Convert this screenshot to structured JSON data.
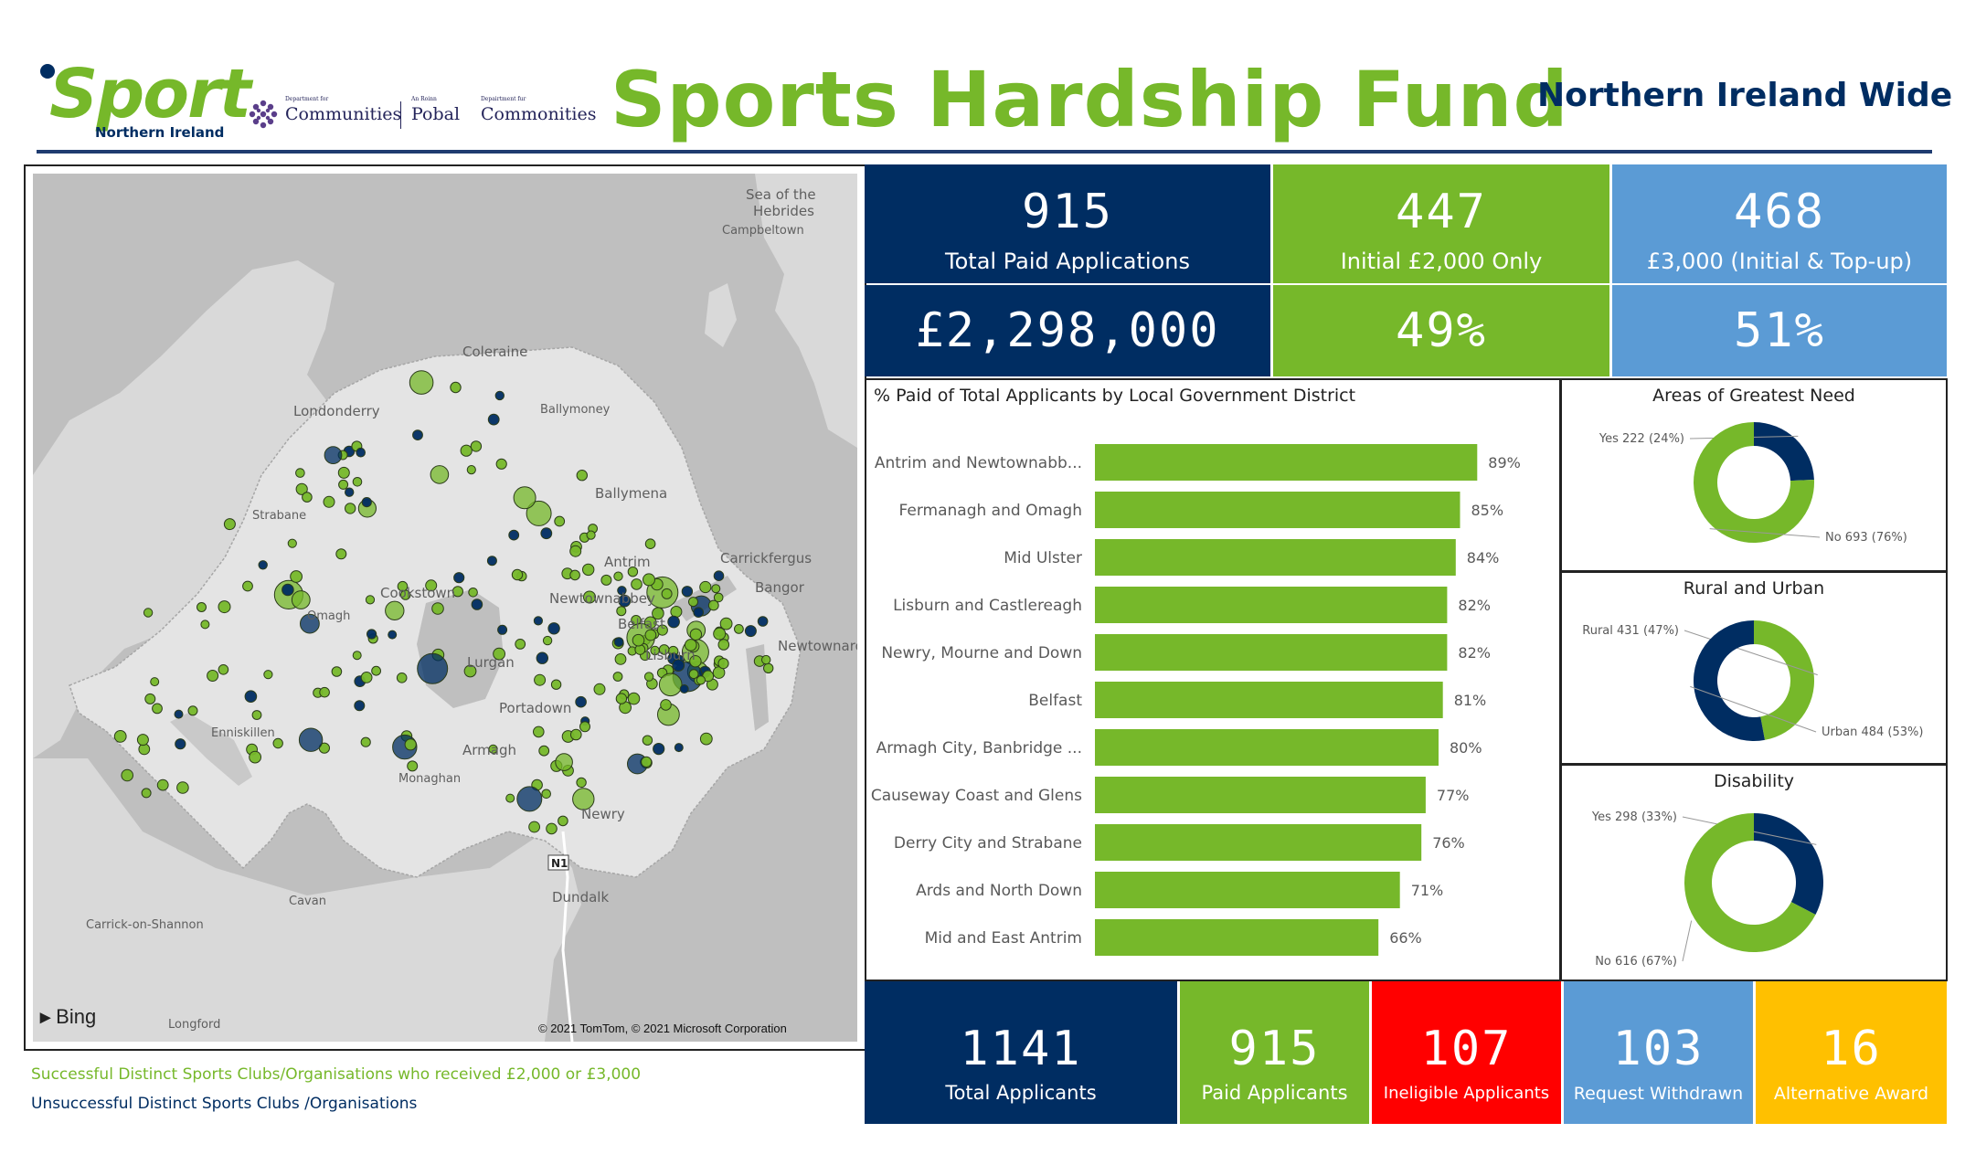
{
  "header": {
    "brand_word": "Sport",
    "brand_sub": "Northern Ireland",
    "dept_tiny_1": "Department for",
    "dept_big_1": "Communities",
    "dept_tiny_2": "An Roinn",
    "dept_big_2": "Pobal",
    "dept_tiny_3": "Depairtment fur",
    "dept_big_3": "Commonities",
    "title": "Sports Hardship Fund",
    "region": "Northern Ireland Wide"
  },
  "colors": {
    "navy": "#002d62",
    "green": "#76b82a",
    "light_blue": "#5b9bd5",
    "red": "#ff0000",
    "amber": "#ffc000"
  },
  "map": {
    "labels": {
      "sea": "Sea of the",
      "sea2": "Hebrides",
      "campbeltown": "Campbeltown",
      "coleraine": "Coleraine",
      "londonderry": "Londonderry",
      "ballymoney": "Ballymoney",
      "ballymena": "Ballymena",
      "strabane": "Strabane",
      "antrim": "Antrim",
      "carrickfergus": "Carrickfergus",
      "bangor": "Bangor",
      "cookstown": "Cookstown",
      "newtownabbey": "Newtownabbey",
      "omagh": "Omagh",
      "belfast": "Belfast",
      "newtownards": "Newtownards",
      "lisburn": "Lisburn",
      "lurgan": "Lurgan",
      "enniskillen": "Enniskillen",
      "portadown": "Portadown",
      "armagh": "Armagh",
      "monaghan": "Monaghan",
      "newry": "Newry",
      "n1": "N1",
      "dundalk": "Dundalk",
      "cavan": "Cavan",
      "carrick": "Carrick-on-Shannon",
      "longford": "Longford"
    },
    "bing": "Bing",
    "credit": "© 2021 TomTom, © 2021 Microsoft Corporation"
  },
  "legend": {
    "successful": "Successful Distinct Sports Clubs/Organisations who received £2,000 or £3,000",
    "unsuccessful": "Unsuccessful Distinct Sports Clubs /Organisations"
  },
  "kpis": {
    "total_paid_applications": {
      "value": "915",
      "label": "Total Paid Applications"
    },
    "initial_only": {
      "value": "447",
      "label": "Initial £2,000 Only"
    },
    "initial_topup": {
      "value": "468",
      "label": "£3,000 (Initial & Top-up)"
    },
    "total_amount": {
      "value": "£2,298,000"
    },
    "initial_only_pct": {
      "value": "49%"
    },
    "initial_topup_pct": {
      "value": "51%"
    }
  },
  "bottom_kpis": [
    {
      "value": "1141",
      "label": "Total Applicants"
    },
    {
      "value": "915",
      "label": "Paid Applicants"
    },
    {
      "value": "107",
      "label": "Ineligible Applicants"
    },
    {
      "value": "103",
      "label": "Request Withdrawn"
    },
    {
      "value": "16",
      "label": "Alternative Award"
    }
  ],
  "chart_data": [
    {
      "type": "bar",
      "orientation": "horizontal",
      "title": "% Paid of Total Applicants by Local Government District",
      "categories": [
        "Antrim and Newtownabb...",
        "Fermanagh and Omagh",
        "Mid Ulster",
        "Lisburn and Castlereagh",
        "Newry, Mourne and Down",
        "Belfast",
        "Armagh City, Banbridge ...",
        "Causeway Coast and Glens",
        "Derry City and Strabane",
        "Ards and North Down",
        "Mid and East Antrim"
      ],
      "values": [
        89,
        85,
        84,
        82,
        82,
        81,
        80,
        77,
        76,
        71,
        66
      ],
      "value_labels": [
        "89%",
        "85%",
        "84%",
        "82%",
        "82%",
        "81%",
        "80%",
        "77%",
        "76%",
        "71%",
        "66%"
      ],
      "xlim": [
        0,
        100
      ],
      "color": "#76b82a"
    },
    {
      "type": "pie",
      "subtype": "donut",
      "title": "Areas of Greatest Need",
      "slices": [
        {
          "name": "Yes",
          "value": 222,
          "label": "Yes 222 (24%)",
          "color": "#002d62"
        },
        {
          "name": "No",
          "value": 693,
          "label": "No 693 (76%)",
          "color": "#76b82a"
        }
      ]
    },
    {
      "type": "pie",
      "subtype": "donut",
      "title": "Rural and Urban",
      "slices": [
        {
          "name": "Rural",
          "value": 431,
          "label": "Rural 431 (47%)",
          "color": "#76b82a"
        },
        {
          "name": "Urban",
          "value": 484,
          "label": "Urban 484 (53%)",
          "color": "#002d62"
        }
      ]
    },
    {
      "type": "pie",
      "subtype": "donut",
      "title": "Disability",
      "slices": [
        {
          "name": "Yes",
          "value": 298,
          "label": "Yes 298 (33%)",
          "color": "#002d62"
        },
        {
          "name": "No",
          "value": 616,
          "label": "No 616 (67%)",
          "color": "#76b82a"
        }
      ]
    }
  ]
}
